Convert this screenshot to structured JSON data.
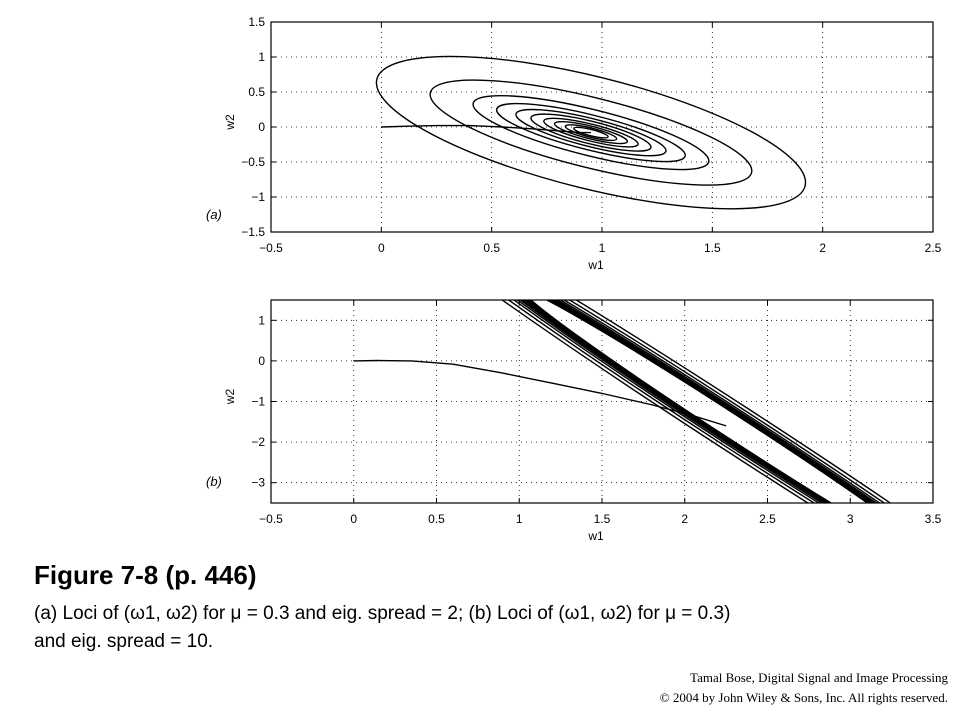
{
  "figure": {
    "title": "Figure 7-8  (p. 446)",
    "caption_line1": "(a) Loci of (ω1, ω2) for μ = 0.3 and eig. spread = 2; (b) Loci of (ω1, ω2) for μ = 0.3)",
    "caption_line2": "and eig. spread = 10.",
    "credit_line1": "Tamal Bose, Digital Signal and Image Processing",
    "credit_line2": "© 2004 by John Wiley & Sons, Inc.  All rights reserved."
  },
  "chart_data": [
    {
      "type": "line",
      "panel_label": "(a)",
      "xlabel": "w1",
      "ylabel": "w2",
      "xlim": [
        -0.5,
        2.5
      ],
      "ylim": [
        -1.5,
        1.5
      ],
      "xticks": [
        -0.5,
        0,
        0.5,
        1,
        1.5,
        2,
        2.5
      ],
      "xtick_labels": [
        "−0.5",
        "0",
        "0.5",
        "1",
        "1.5",
        "2",
        "2.5"
      ],
      "yticks": [
        -1.5,
        -1,
        -0.5,
        0,
        0.5,
        1,
        1.5
      ],
      "ytick_labels": [
        "−1.5",
        "−1",
        "−0.5",
        "0",
        "0.5",
        "1",
        "1.5"
      ],
      "grid": true,
      "contours": {
        "center": [
          0.95,
          -0.08
        ],
        "tilt_deg": -14,
        "semi_axes": [
          [
            1.0,
            0.8
          ],
          [
            0.75,
            0.5
          ],
          [
            0.55,
            0.33
          ],
          [
            0.44,
            0.25
          ],
          [
            0.35,
            0.2
          ],
          [
            0.28,
            0.16
          ],
          [
            0.22,
            0.12
          ],
          [
            0.17,
            0.09
          ],
          [
            0.12,
            0.065
          ],
          [
            0.08,
            0.045
          ]
        ]
      },
      "trajectory": {
        "w1": [
          0.0,
          0.1,
          0.25,
          0.4,
          0.55,
          0.7,
          0.82,
          0.9,
          0.95
        ],
        "w2": [
          0.0,
          0.01,
          0.02,
          0.02,
          0.0,
          -0.03,
          -0.06,
          -0.08,
          -0.08
        ]
      }
    },
    {
      "type": "line",
      "panel_label": "(b)",
      "xlabel": "w1",
      "ylabel": "w2",
      "xlim": [
        -0.5,
        3.5
      ],
      "ylim": [
        -3.5,
        1.5
      ],
      "xticks": [
        -0.5,
        0,
        0.5,
        1,
        1.5,
        2,
        2.5,
        3,
        3.5
      ],
      "xtick_labels": [
        "−0.5",
        "0",
        "0.5",
        "1",
        "1.5",
        "2",
        "2.5",
        "3",
        "3.5"
      ],
      "yticks": [
        -3,
        -2,
        -1,
        0,
        1
      ],
      "ytick_labels": [
        "−3",
        "−2",
        "−1",
        "0",
        "1"
      ],
      "grid": true,
      "contours": {
        "center": [
          2.3,
          -1.65
        ],
        "tilt_deg": -33,
        "semi_axes": [
          [
            2.75,
            0.58
          ],
          [
            2.45,
            0.5
          ],
          [
            2.2,
            0.44
          ],
          [
            2.05,
            0.4
          ],
          [
            1.92,
            0.37
          ],
          [
            1.82,
            0.35
          ],
          [
            1.73,
            0.33
          ],
          [
            1.65,
            0.31
          ],
          [
            1.58,
            0.3
          ],
          [
            1.52,
            0.29
          ]
        ]
      },
      "trajectory": {
        "w1": [
          0.0,
          0.15,
          0.35,
          0.6,
          0.9,
          1.2,
          1.5,
          1.8,
          2.05,
          2.25
        ],
        "w2": [
          0.0,
          0.01,
          0.0,
          -0.08,
          -0.3,
          -0.55,
          -0.8,
          -1.08,
          -1.35,
          -1.6
        ]
      }
    }
  ]
}
